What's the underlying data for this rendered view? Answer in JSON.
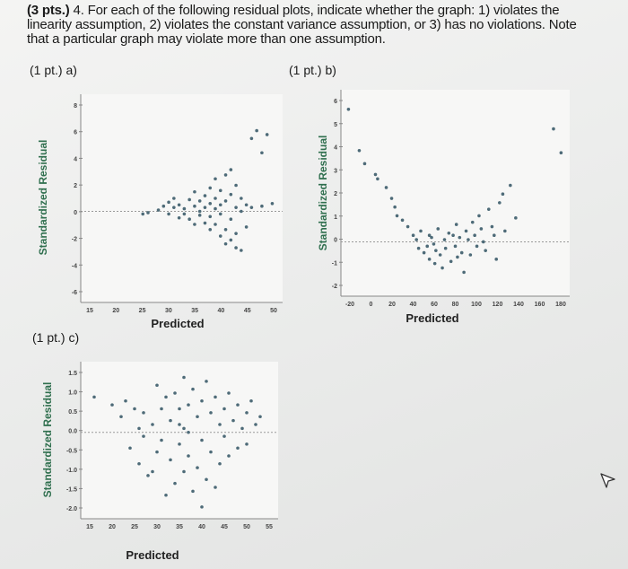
{
  "question": {
    "pts_prefix": "(3 pts.)",
    "text": " 4. For each of the following residual plots, indicate whether the graph: 1) violates the linearity assumption, 2) violates the constant variance assumption, or 3) has no violations. Note that a particular graph may violate more than one assumption."
  },
  "parts": {
    "a": "(1 pt.) a)",
    "b": "(1 pt.) b)",
    "c": "(1 pt.) c)"
  },
  "chart_data": [
    {
      "type": "scatter",
      "part": "a",
      "xlabel": "Predicted",
      "ylabel": "Standardized Residual",
      "x_ticks": [
        "15",
        "20",
        "25",
        "30",
        "35",
        "40",
        "45",
        "50"
      ],
      "y_ticks": [
        "8",
        "6",
        "4",
        "2",
        "0",
        "-2",
        "-4",
        "-6"
      ],
      "xlim": [
        13,
        52
      ],
      "ylim": [
        -7,
        9
      ],
      "reference_line": 0,
      "points": [
        [
          28,
          0.1
        ],
        [
          29,
          0.4
        ],
        [
          30,
          0.7
        ],
        [
          30,
          -0.2
        ],
        [
          31,
          0.3
        ],
        [
          31,
          1.0
        ],
        [
          32,
          0.5
        ],
        [
          32,
          -0.5
        ],
        [
          33,
          0.2
        ],
        [
          33,
          -0.2
        ],
        [
          34,
          0.9
        ],
        [
          34,
          -0.6
        ],
        [
          35,
          0.4
        ],
        [
          35,
          -1.0
        ],
        [
          35,
          1.5
        ],
        [
          36,
          0.0
        ],
        [
          36,
          -0.3
        ],
        [
          36,
          0.8
        ],
        [
          37,
          1.2
        ],
        [
          37,
          -0.9
        ],
        [
          37,
          0.3
        ],
        [
          38,
          1.8
        ],
        [
          38,
          -0.4
        ],
        [
          38,
          0.6
        ],
        [
          38,
          -1.4
        ],
        [
          39,
          2.5
        ],
        [
          39,
          0.2
        ],
        [
          39,
          -1.0
        ],
        [
          39,
          1.0
        ],
        [
          40,
          -0.2
        ],
        [
          40,
          1.6
        ],
        [
          40,
          -1.9
        ],
        [
          40,
          0.5
        ],
        [
          41,
          2.8
        ],
        [
          41,
          -1.4
        ],
        [
          41,
          0.8
        ],
        [
          41,
          -2.5
        ],
        [
          42,
          1.3
        ],
        [
          42,
          -0.6
        ],
        [
          42,
          3.2
        ],
        [
          42,
          -2.2
        ],
        [
          43,
          0.3
        ],
        [
          43,
          -1.7
        ],
        [
          43,
          2.0
        ],
        [
          43,
          -2.8
        ],
        [
          44,
          0.0
        ],
        [
          44,
          1.0
        ],
        [
          44,
          -3.0
        ],
        [
          45,
          0.5
        ],
        [
          45,
          -1.2
        ],
        [
          46,
          0.3
        ],
        [
          46,
          5.6
        ],
        [
          47,
          6.2
        ],
        [
          48,
          0.4
        ],
        [
          48,
          4.5
        ],
        [
          49,
          5.9
        ],
        [
          50,
          0.6
        ],
        [
          25,
          -0.2
        ],
        [
          26,
          -0.1
        ]
      ]
    },
    {
      "type": "scatter",
      "part": "b",
      "xlabel": "Predicted",
      "ylabel": "Standardized Residual",
      "x_ticks": [
        "-20",
        "0",
        "20",
        "40",
        "60",
        "80",
        "100",
        "120",
        "140",
        "160",
        "180"
      ],
      "y_ticks": [
        "6",
        "5",
        "4",
        "3",
        "2",
        "1",
        "0",
        "-1",
        "-2"
      ],
      "xlim": [
        -22,
        190
      ],
      "ylim": [
        -2.5,
        7
      ],
      "reference_line": 0,
      "points": [
        [
          -15,
          6.1
        ],
        [
          -5,
          4.2
        ],
        [
          0,
          3.6
        ],
        [
          10,
          3.1
        ],
        [
          12,
          2.9
        ],
        [
          20,
          2.5
        ],
        [
          25,
          2.0
        ],
        [
          28,
          1.6
        ],
        [
          30,
          1.2
        ],
        [
          35,
          1.0
        ],
        [
          40,
          0.7
        ],
        [
          45,
          0.3
        ],
        [
          48,
          0.1
        ],
        [
          50,
          -0.3
        ],
        [
          52,
          0.5
        ],
        [
          55,
          -0.5
        ],
        [
          58,
          -0.2
        ],
        [
          60,
          -0.8
        ],
        [
          62,
          0.2
        ],
        [
          65,
          -1.0
        ],
        [
          66,
          -0.4
        ],
        [
          68,
          0.6
        ],
        [
          70,
          -0.6
        ],
        [
          72,
          -1.2
        ],
        [
          74,
          0.1
        ],
        [
          75,
          -0.3
        ],
        [
          78,
          0.4
        ],
        [
          80,
          -0.9
        ],
        [
          82,
          0.3
        ],
        [
          84,
          -0.2
        ],
        [
          85,
          0.8
        ],
        [
          86,
          -0.7
        ],
        [
          88,
          0.2
        ],
        [
          90,
          -0.5
        ],
        [
          92,
          -1.4
        ],
        [
          94,
          0.5
        ],
        [
          96,
          0.1
        ],
        [
          98,
          -0.6
        ],
        [
          100,
          0.9
        ],
        [
          102,
          0.3
        ],
        [
          104,
          -0.2
        ],
        [
          106,
          1.2
        ],
        [
          108,
          0.6
        ],
        [
          110,
          0.0
        ],
        [
          112,
          -0.4
        ],
        [
          115,
          1.5
        ],
        [
          118,
          0.7
        ],
        [
          120,
          0.3
        ],
        [
          122,
          -0.8
        ],
        [
          125,
          1.8
        ],
        [
          128,
          2.2
        ],
        [
          130,
          0.5
        ],
        [
          135,
          2.6
        ],
        [
          140,
          1.1
        ],
        [
          175,
          5.2
        ],
        [
          182,
          4.1
        ],
        [
          60,
          0.3
        ],
        [
          64,
          -0.1
        ]
      ]
    },
    {
      "type": "scatter",
      "part": "c",
      "xlabel": "Predicted",
      "ylabel": "Standardized Residual",
      "x_ticks": [
        "15",
        "20",
        "25",
        "30",
        "35",
        "40",
        "45",
        "50",
        "55"
      ],
      "y_ticks": [
        "1.5",
        "1.0",
        "0.5",
        "0.0",
        "-0.5",
        "-1.0",
        "-1.5",
        "-2.0"
      ],
      "xlim": [
        13,
        57
      ],
      "ylim": [
        -2.2,
        1.8
      ],
      "reference_line": 0,
      "points": [
        [
          16,
          0.9
        ],
        [
          20,
          0.7
        ],
        [
          22,
          0.4
        ],
        [
          23,
          0.8
        ],
        [
          24,
          -0.4
        ],
        [
          25,
          0.6
        ],
        [
          26,
          -0.8
        ],
        [
          27,
          0.5
        ],
        [
          28,
          -1.1
        ],
        [
          29,
          0.2
        ],
        [
          30,
          1.2
        ],
        [
          30,
          -0.5
        ],
        [
          31,
          0.6
        ],
        [
          31,
          -0.2
        ],
        [
          32,
          0.9
        ],
        [
          32,
          -1.6
        ],
        [
          33,
          0.3
        ],
        [
          33,
          -0.7
        ],
        [
          34,
          1.0
        ],
        [
          34,
          -1.3
        ],
        [
          35,
          0.6
        ],
        [
          35,
          -0.3
        ],
        [
          36,
          1.4
        ],
        [
          36,
          0.1
        ],
        [
          36,
          -1.0
        ],
        [
          37,
          0.7
        ],
        [
          37,
          -0.6
        ],
        [
          38,
          1.1
        ],
        [
          38,
          -1.5
        ],
        [
          39,
          0.4
        ],
        [
          39,
          -0.9
        ],
        [
          40,
          0.8
        ],
        [
          40,
          -0.2
        ],
        [
          41,
          1.3
        ],
        [
          41,
          -1.2
        ],
        [
          42,
          0.5
        ],
        [
          42,
          -0.5
        ],
        [
          43,
          0.9
        ],
        [
          43,
          -1.4
        ],
        [
          44,
          0.2
        ],
        [
          44,
          -0.8
        ],
        [
          45,
          0.6
        ],
        [
          45,
          -0.1
        ],
        [
          46,
          1.0
        ],
        [
          46,
          -0.6
        ],
        [
          47,
          0.3
        ],
        [
          48,
          -0.4
        ],
        [
          48,
          0.7
        ],
        [
          49,
          0.1
        ],
        [
          50,
          0.5
        ],
        [
          50,
          -0.3
        ],
        [
          51,
          0.8
        ],
        [
          52,
          0.2
        ],
        [
          53,
          0.4
        ],
        [
          27,
          -0.1
        ],
        [
          26,
          0.1
        ],
        [
          29,
          -1.0
        ],
        [
          35,
          0.2
        ],
        [
          40,
          -1.9
        ],
        [
          37,
          0.0
        ]
      ]
    }
  ]
}
